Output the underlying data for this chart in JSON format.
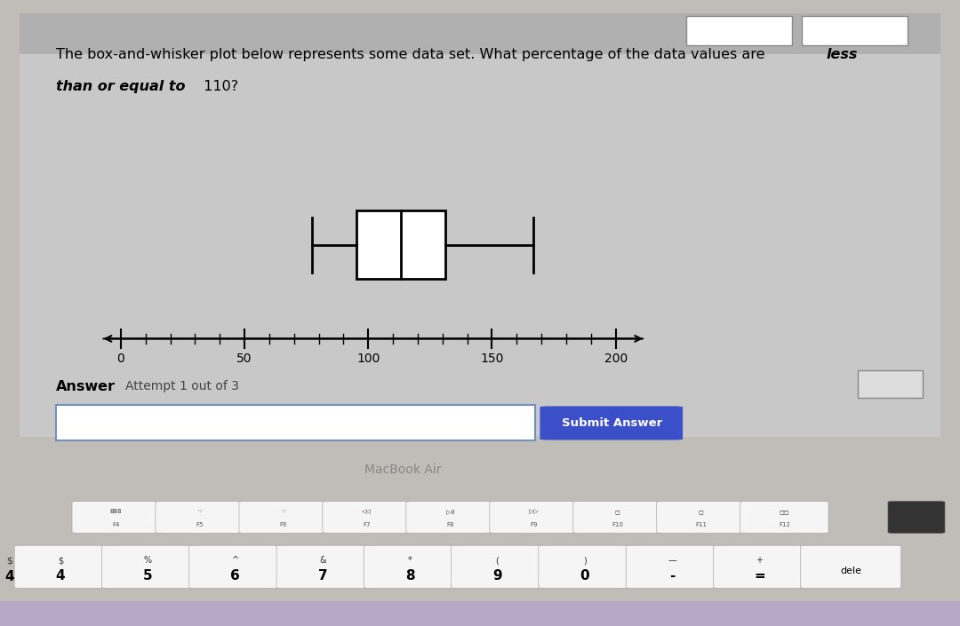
{
  "whisker_min": 70,
  "q1": 90,
  "median": 110,
  "q3": 130,
  "whisker_max": 170,
  "axis_min": 0,
  "axis_max": 200,
  "axis_ticks": [
    0,
    50,
    100,
    150,
    200
  ],
  "screen_bg": "#c8c8c8",
  "page_bg": "#e0e0e0",
  "content_bg": "#f0f0f0",
  "answer_panel_bg": "#e8e8e8",
  "laptop_body": "#c0bdb8",
  "laptop_bezel": "#1a1a1a",
  "keyboard_bg": "#d0cdc8",
  "key_color": "#f5f5f5",
  "submit_btn_color": "#3a4fc8",
  "answer_box_border": "#7090c0",
  "title_line1": "The box-and-whisker plot below represents some data set. What percentage of the data values are less",
  "title_line2": "than or equal to 110?",
  "answer_label": "Answer",
  "attempt_label": "Attempt 1 out of 3",
  "submit_text": "Submit Answer",
  "macbook_text": "MacBook Air",
  "fn_keys": [
    "888\nF4",
    "∵\nF5",
    "∵\nF6",
    "◁◁\nF7",
    "▷II\nF8",
    "▷▷\nF9",
    "◻\nF10",
    "◻\nF11",
    "◻\nF12"
  ],
  "num_keys": [
    "$\n4",
    "%\n5",
    "^\n6",
    "&\n7",
    "*\n8",
    "(\n9",
    ")\n0",
    "—\n-",
    "+\n=",
    "dele"
  ]
}
